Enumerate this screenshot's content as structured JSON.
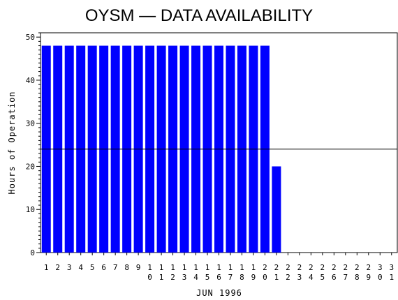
{
  "chart_data": {
    "type": "bar",
    "title": "OYSM — DATA AVAILABILITY",
    "xlabel": "JUN 1996",
    "ylabel": "Hours of Operation",
    "categories": [
      "1",
      "2",
      "3",
      "4",
      "5",
      "6",
      "7",
      "8",
      "9",
      "10",
      "11",
      "12",
      "13",
      "14",
      "15",
      "16",
      "17",
      "18",
      "19",
      "20",
      "21",
      "22",
      "23",
      "24",
      "25",
      "26",
      "27",
      "28",
      "29",
      "30",
      "31"
    ],
    "values": [
      48,
      48,
      48,
      48,
      48,
      48,
      48,
      48,
      48,
      48,
      48,
      48,
      48,
      48,
      48,
      48,
      48,
      48,
      48,
      48,
      20,
      0,
      0,
      0,
      0,
      0,
      0,
      0,
      0,
      0,
      0
    ],
    "ylim": [
      0,
      51
    ],
    "yticks": [
      0,
      10,
      20,
      30,
      40,
      50
    ],
    "reference_line": 24,
    "bar_color": "#0000ff",
    "grid": false
  }
}
